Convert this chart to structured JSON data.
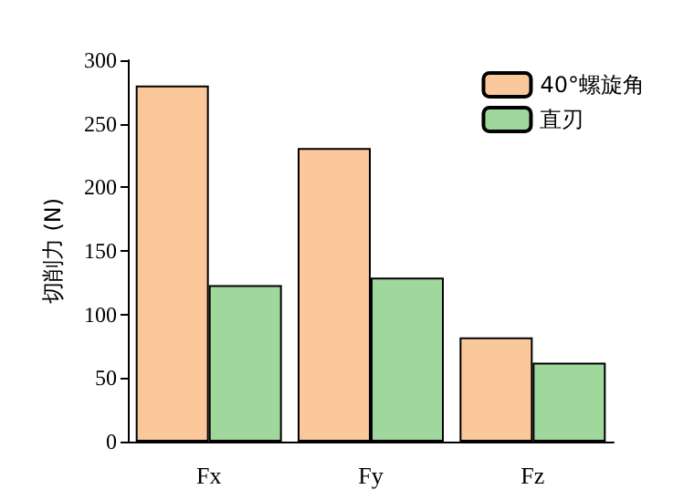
{
  "chart_data": {
    "type": "bar",
    "ylabel": "切削力 (N)",
    "categories": [
      "Fx",
      "Fy",
      "Fz"
    ],
    "series": [
      {
        "name": "40°螺旋角",
        "color": "#fac89a",
        "values": [
          280,
          231,
          82
        ]
      },
      {
        "name": "直刃",
        "color": "#9fd79c",
        "values": [
          123,
          129,
          62
        ]
      }
    ],
    "ylim": [
      0,
      300
    ],
    "yticks": [
      0,
      50,
      100,
      150,
      200,
      250,
      300
    ],
    "grid": false,
    "legend": "top right"
  }
}
